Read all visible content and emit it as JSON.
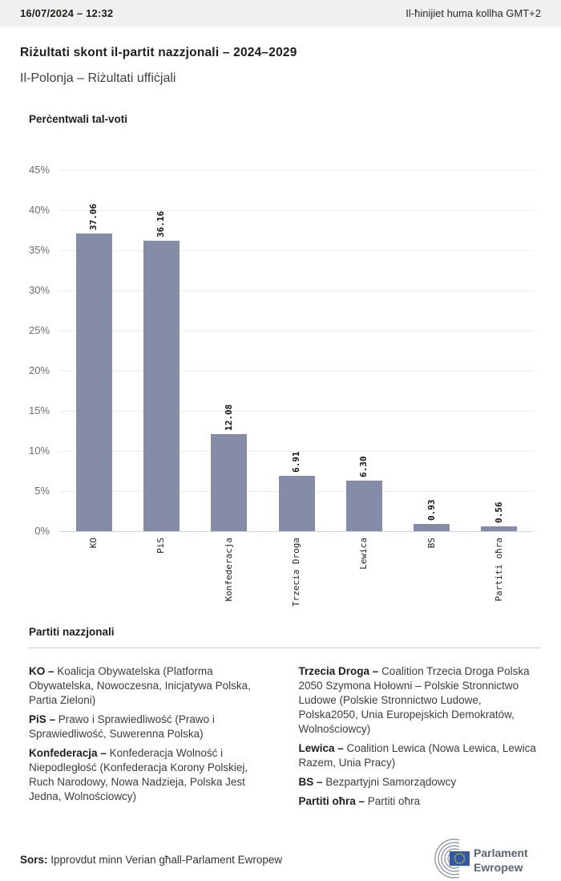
{
  "header": {
    "datetime": "16/07/2024 – 12:32",
    "timezone_note": "Il-ħinijiet huma kollha GMT+2"
  },
  "page": {
    "title": "Riżultati skont il-partit nazzjonali – 2024–2029",
    "subtitle": "Il-Polonja – Riżultati uffiċjali"
  },
  "chart_data": {
    "type": "bar",
    "title": "Perċentwali tal-voti",
    "categories": [
      "KO",
      "PiS",
      "Konfederacja",
      "Trzecia Droga",
      "Lewica",
      "BS",
      "Partiti oħra"
    ],
    "values": [
      37.06,
      36.16,
      12.08,
      6.91,
      6.3,
      0.93,
      0.56
    ],
    "value_labels": [
      "37.06",
      "36.16",
      "12.08",
      "6.91",
      "6.30",
      "0.93",
      "0.56"
    ],
    "xlabel": "",
    "ylabel": "",
    "ylim": [
      0,
      45
    ],
    "ytick_step": 5,
    "ytick_labels": [
      "0%",
      "5%",
      "10%",
      "15%",
      "20%",
      "25%",
      "30%",
      "35%",
      "40%",
      "45%"
    ],
    "grid": true,
    "legend": "none",
    "bar_color": "#848CA7",
    "label_rotation": 90
  },
  "parties_section": {
    "heading": "Partiti nazzjonali",
    "columns": {
      "left": [
        {
          "label": "KO –",
          "text": "Koalicja Obywatelska (Platforma Obywatelska, Nowoczesna, Inicjatywa Polska, Partia Zieloni)"
        },
        {
          "label": "PiS –",
          "text": "Prawo i Sprawiedliwość (Prawo i Sprawiedliwość, Suwerenna Polska)"
        },
        {
          "label": "Konfederacja –",
          "text": "Konfederacja Wolność i Niepodległość (Konfederacja Korony Polskiej, Ruch Narodowy, Nowa Nadzieja, Polska Jest Jedna, Wolnościowcy)"
        }
      ],
      "right": [
        {
          "label": "Trzecia Droga –",
          "text": "Coalition Trzecia Droga Polska 2050 Szymona Hołowni – Polskie Stronnictwo Ludowe (Polskie Stronnictwo Ludowe, Polska2050, Unia Europejskich Demokratów, Wolnościowcy)"
        },
        {
          "label": "Lewica –",
          "text": "Coalition Lewica (Nowa Lewica, Lewica Razem, Unia Pracy)"
        },
        {
          "label": "BS –",
          "text": "Bezpartyjni Samorządowcy"
        },
        {
          "label": "Partiti oħra –",
          "text": "Partiti oħra"
        }
      ]
    }
  },
  "footer": {
    "source_label": "Sors:",
    "source_text": "Ipprovdut minn Verian għall-Parlament Ewropew",
    "logo_line1": "Parlament",
    "logo_line2": "Ewropew"
  },
  "colors": {
    "bar": "#848CA7",
    "topbar_bg": "#f0f0f0",
    "flag_blue": "#2d59a8",
    "star_yellow": "#ffd617",
    "logo_gray": "#949ca3"
  }
}
